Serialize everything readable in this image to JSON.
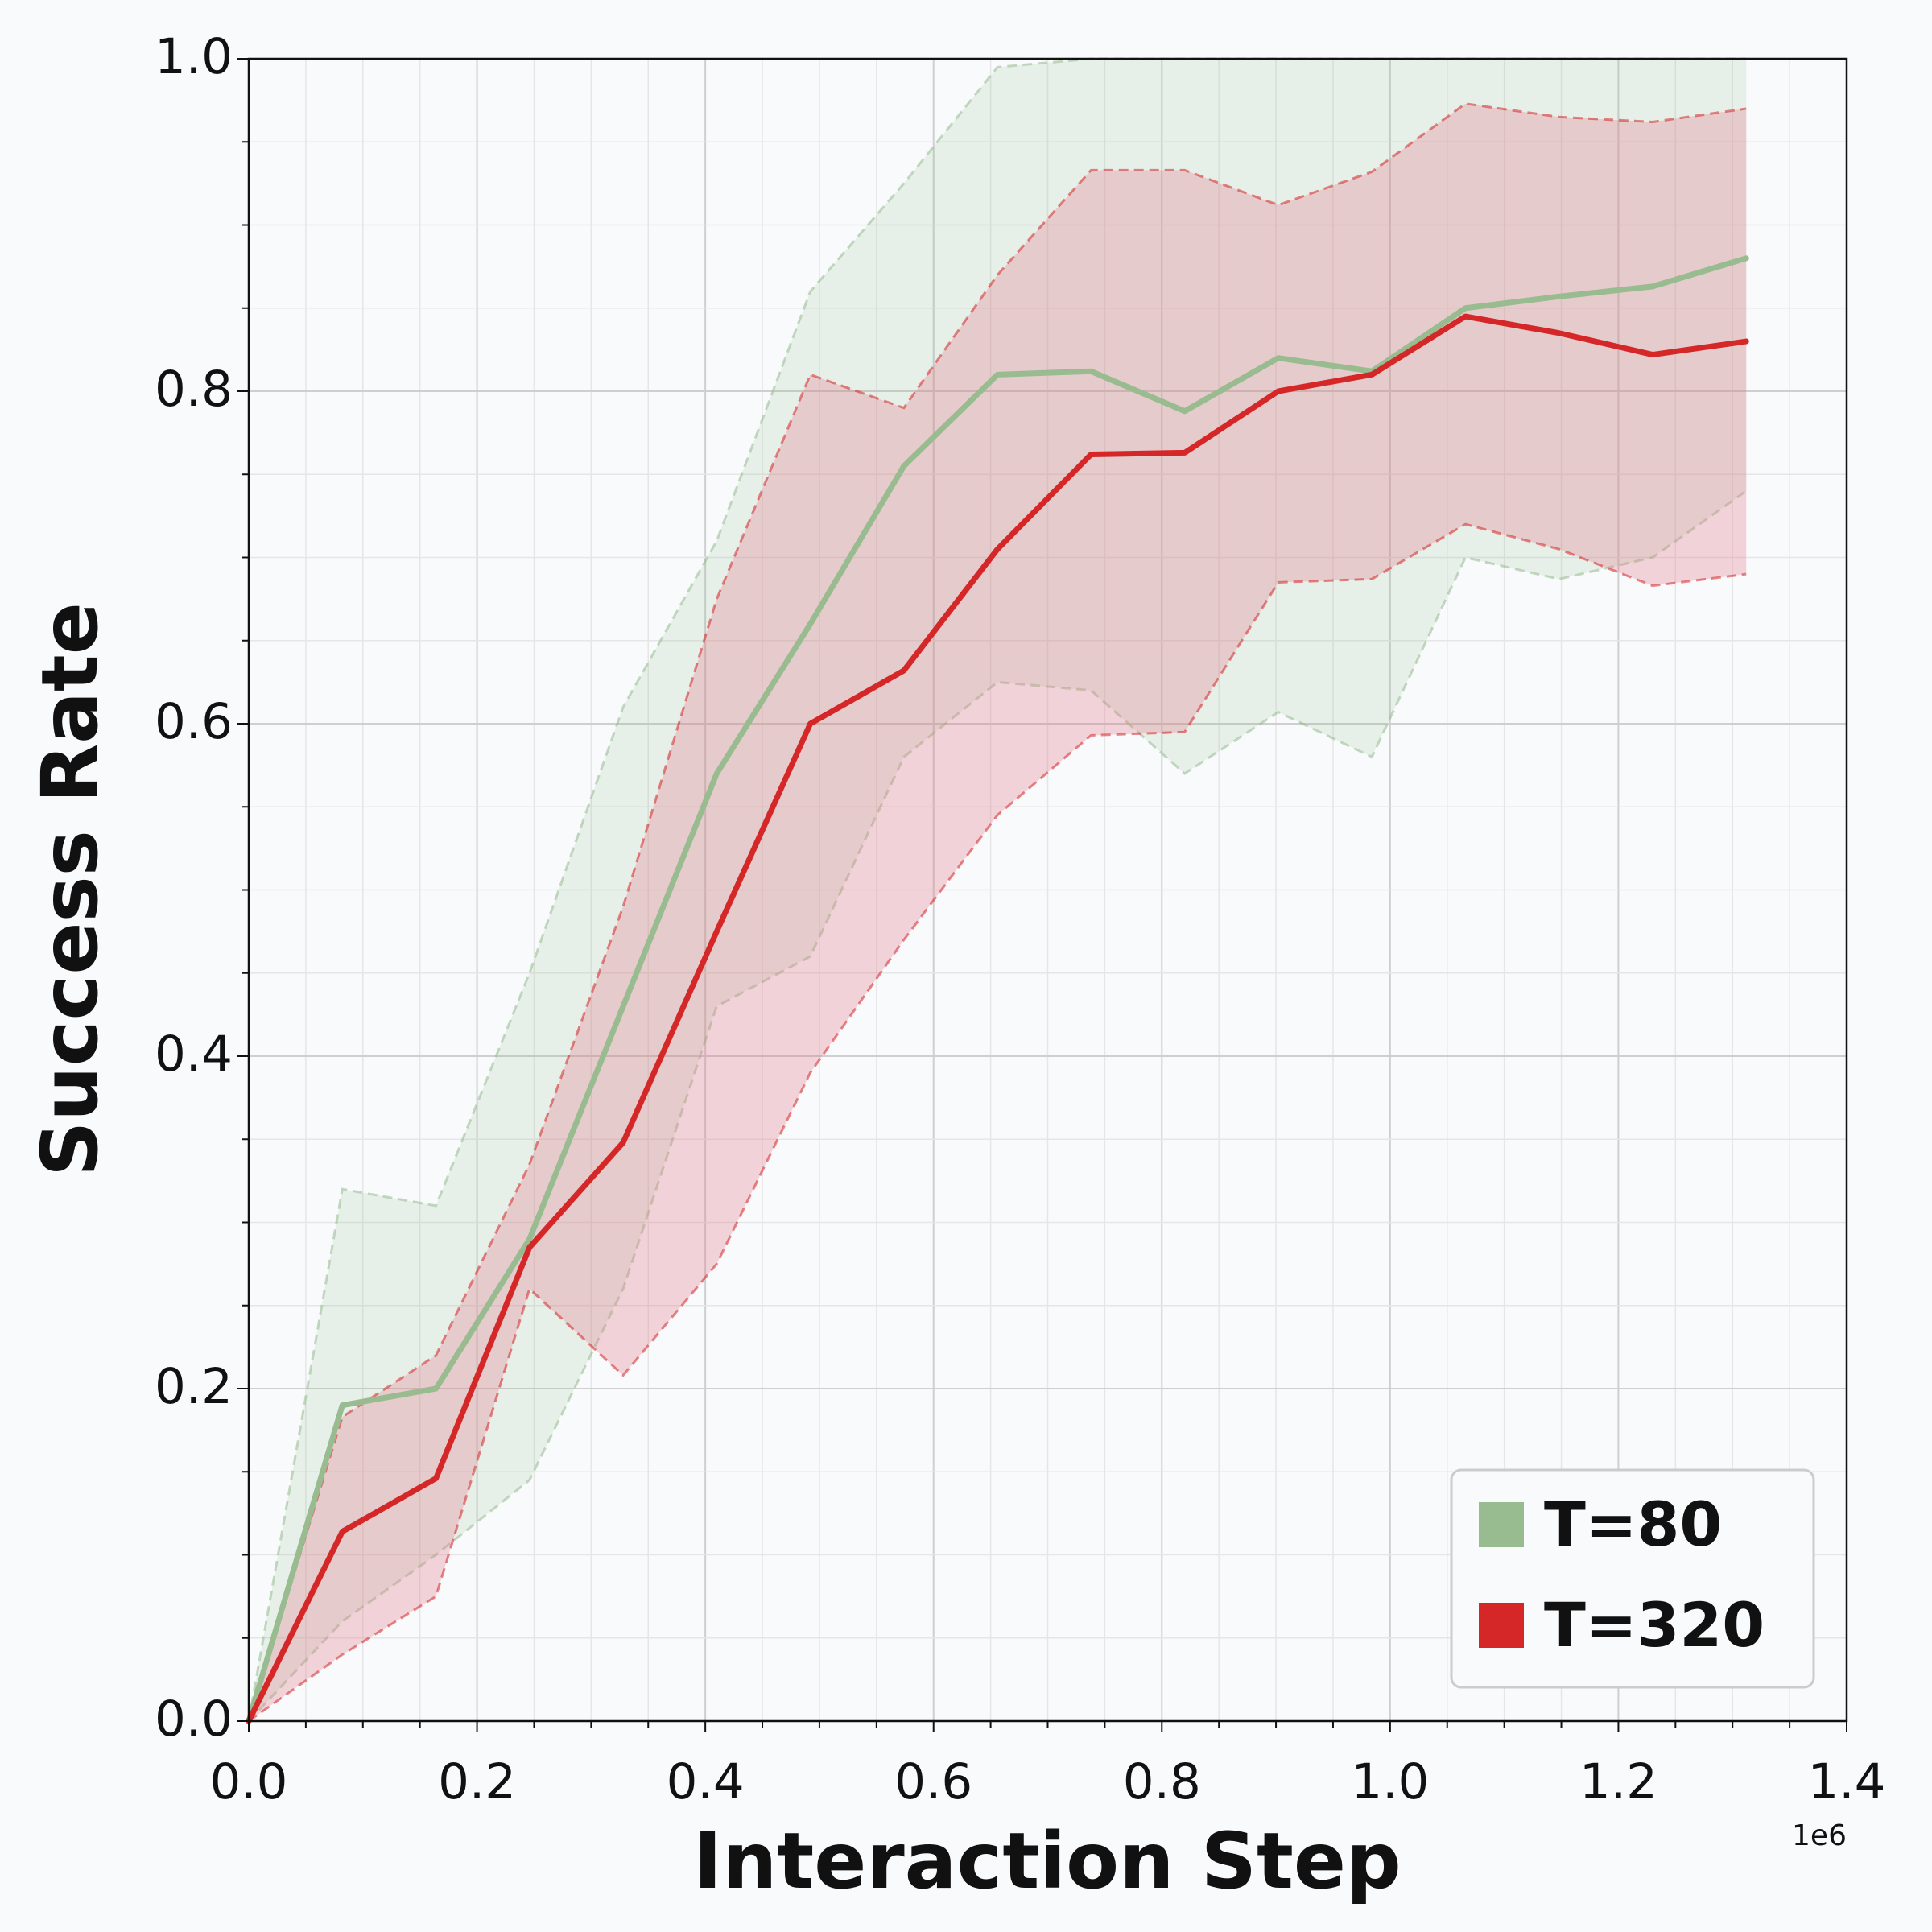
{
  "chart_data": {
    "type": "line",
    "title": "",
    "xlabel": "Interaction Step",
    "ylabel": "Success Rate",
    "x_offset_label": "1e6",
    "xlim": [
      0,
      1.4
    ],
    "ylim": [
      0,
      1.0
    ],
    "xticks": [
      "0.0",
      "0.2",
      "0.4",
      "0.6",
      "0.8",
      "1.0",
      "1.2",
      "1.4"
    ],
    "yticks": [
      "0.0",
      "0.2",
      "0.4",
      "0.6",
      "0.8",
      "1.0"
    ],
    "grid": true,
    "legend_position": "bottom-right",
    "x": [
      0,
      0.082,
      0.164,
      0.246,
      0.328,
      0.41,
      0.492,
      0.574,
      0.656,
      0.738,
      0.82,
      0.902,
      0.984,
      1.066,
      1.148,
      1.23,
      1.312
    ],
    "series": [
      {
        "name": "T=80",
        "color": "#98bb8f",
        "values": [
          0,
          0.19,
          0.2,
          0.29,
          0.43,
          0.57,
          0.66,
          0.755,
          0.81,
          0.812,
          0.788,
          0.82,
          0.812,
          0.85,
          0.857,
          0.863,
          0.88
        ],
        "upper": [
          0,
          0.32,
          0.31,
          0.45,
          0.61,
          0.71,
          0.86,
          0.925,
          0.995,
          1.0,
          1.0,
          1.0,
          1.0,
          1.0,
          1.0,
          1.0,
          1.0
        ],
        "lower": [
          0,
          0.06,
          0.1,
          0.145,
          0.26,
          0.43,
          0.46,
          0.58,
          0.625,
          0.62,
          0.57,
          0.607,
          0.58,
          0.7,
          0.687,
          0.7,
          0.74
        ]
      },
      {
        "name": "T=320",
        "color": "#d62728",
        "values": [
          0,
          0.114,
          0.146,
          0.285,
          0.348,
          0.475,
          0.6,
          0.632,
          0.705,
          0.762,
          0.763,
          0.8,
          0.81,
          0.845,
          0.835,
          0.822,
          0.83
        ],
        "upper": [
          0,
          0.183,
          0.22,
          0.335,
          0.49,
          0.675,
          0.81,
          0.79,
          0.87,
          0.933,
          0.933,
          0.912,
          0.932,
          0.973,
          0.965,
          0.962,
          0.97
        ],
        "lower": [
          0,
          0.04,
          0.075,
          0.26,
          0.208,
          0.275,
          0.39,
          0.47,
          0.545,
          0.593,
          0.595,
          0.685,
          0.687,
          0.72,
          0.705,
          0.683,
          0.69
        ]
      }
    ]
  }
}
